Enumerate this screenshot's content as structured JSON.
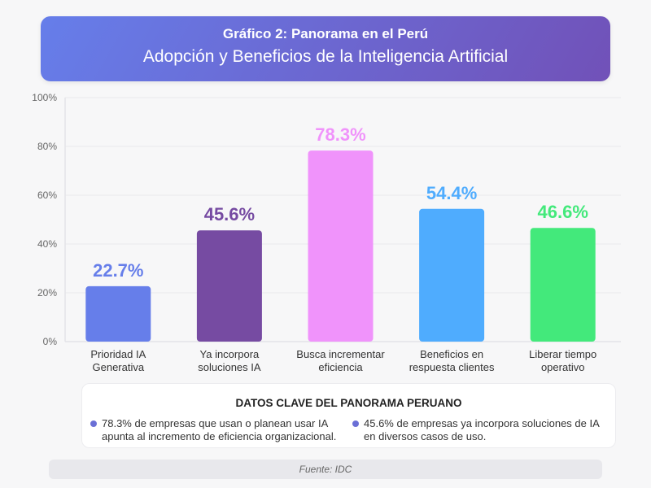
{
  "header": {
    "title": "Gráfico 2: Panorama en el Perú",
    "subtitle": "Adopción y Beneficios de la Inteligencia Artificial"
  },
  "chart_data": {
    "type": "bar",
    "title": "Gráfico 2: Panorama en el Perú",
    "subtitle": "Adopción y Beneficios de la Inteligencia Artificial",
    "xlabel": "",
    "ylabel": "",
    "ylim": [
      0,
      100
    ],
    "yticks": [
      0,
      20,
      40,
      60,
      80,
      100
    ],
    "ytick_labels": [
      "0%",
      "20%",
      "40%",
      "60%",
      "80%",
      "100%"
    ],
    "grid": true,
    "legend": "none",
    "categories": [
      [
        "Prioridad IA",
        "Generativa"
      ],
      [
        "Ya incorpora",
        "soluciones IA"
      ],
      [
        "Busca incrementar",
        "eficiencia"
      ],
      [
        "Beneficios en",
        "respuesta clientes"
      ],
      [
        "Liberar tiempo",
        "operativo"
      ]
    ],
    "values": [
      22.7,
      45.6,
      78.3,
      54.4,
      46.6
    ],
    "value_labels": [
      "22.7%",
      "45.6%",
      "78.3%",
      "54.4%",
      "46.6%"
    ],
    "colors": [
      "#667eea",
      "#764ba2",
      "#f093fb",
      "#4facfe",
      "#43e97b"
    ]
  },
  "key_facts": {
    "title": "DATOS CLAVE DEL PANORAMA PERUANO",
    "items": [
      "78.3% de empresas que usan o planean usar IA apunta al incremento de eficiencia organizacional.",
      "45.6% de empresas ya incorpora soluciones de IA en diversos casos de uso."
    ],
    "bullet_color": "#6a6fd6"
  },
  "footer": {
    "source": "Fuente: IDC"
  }
}
